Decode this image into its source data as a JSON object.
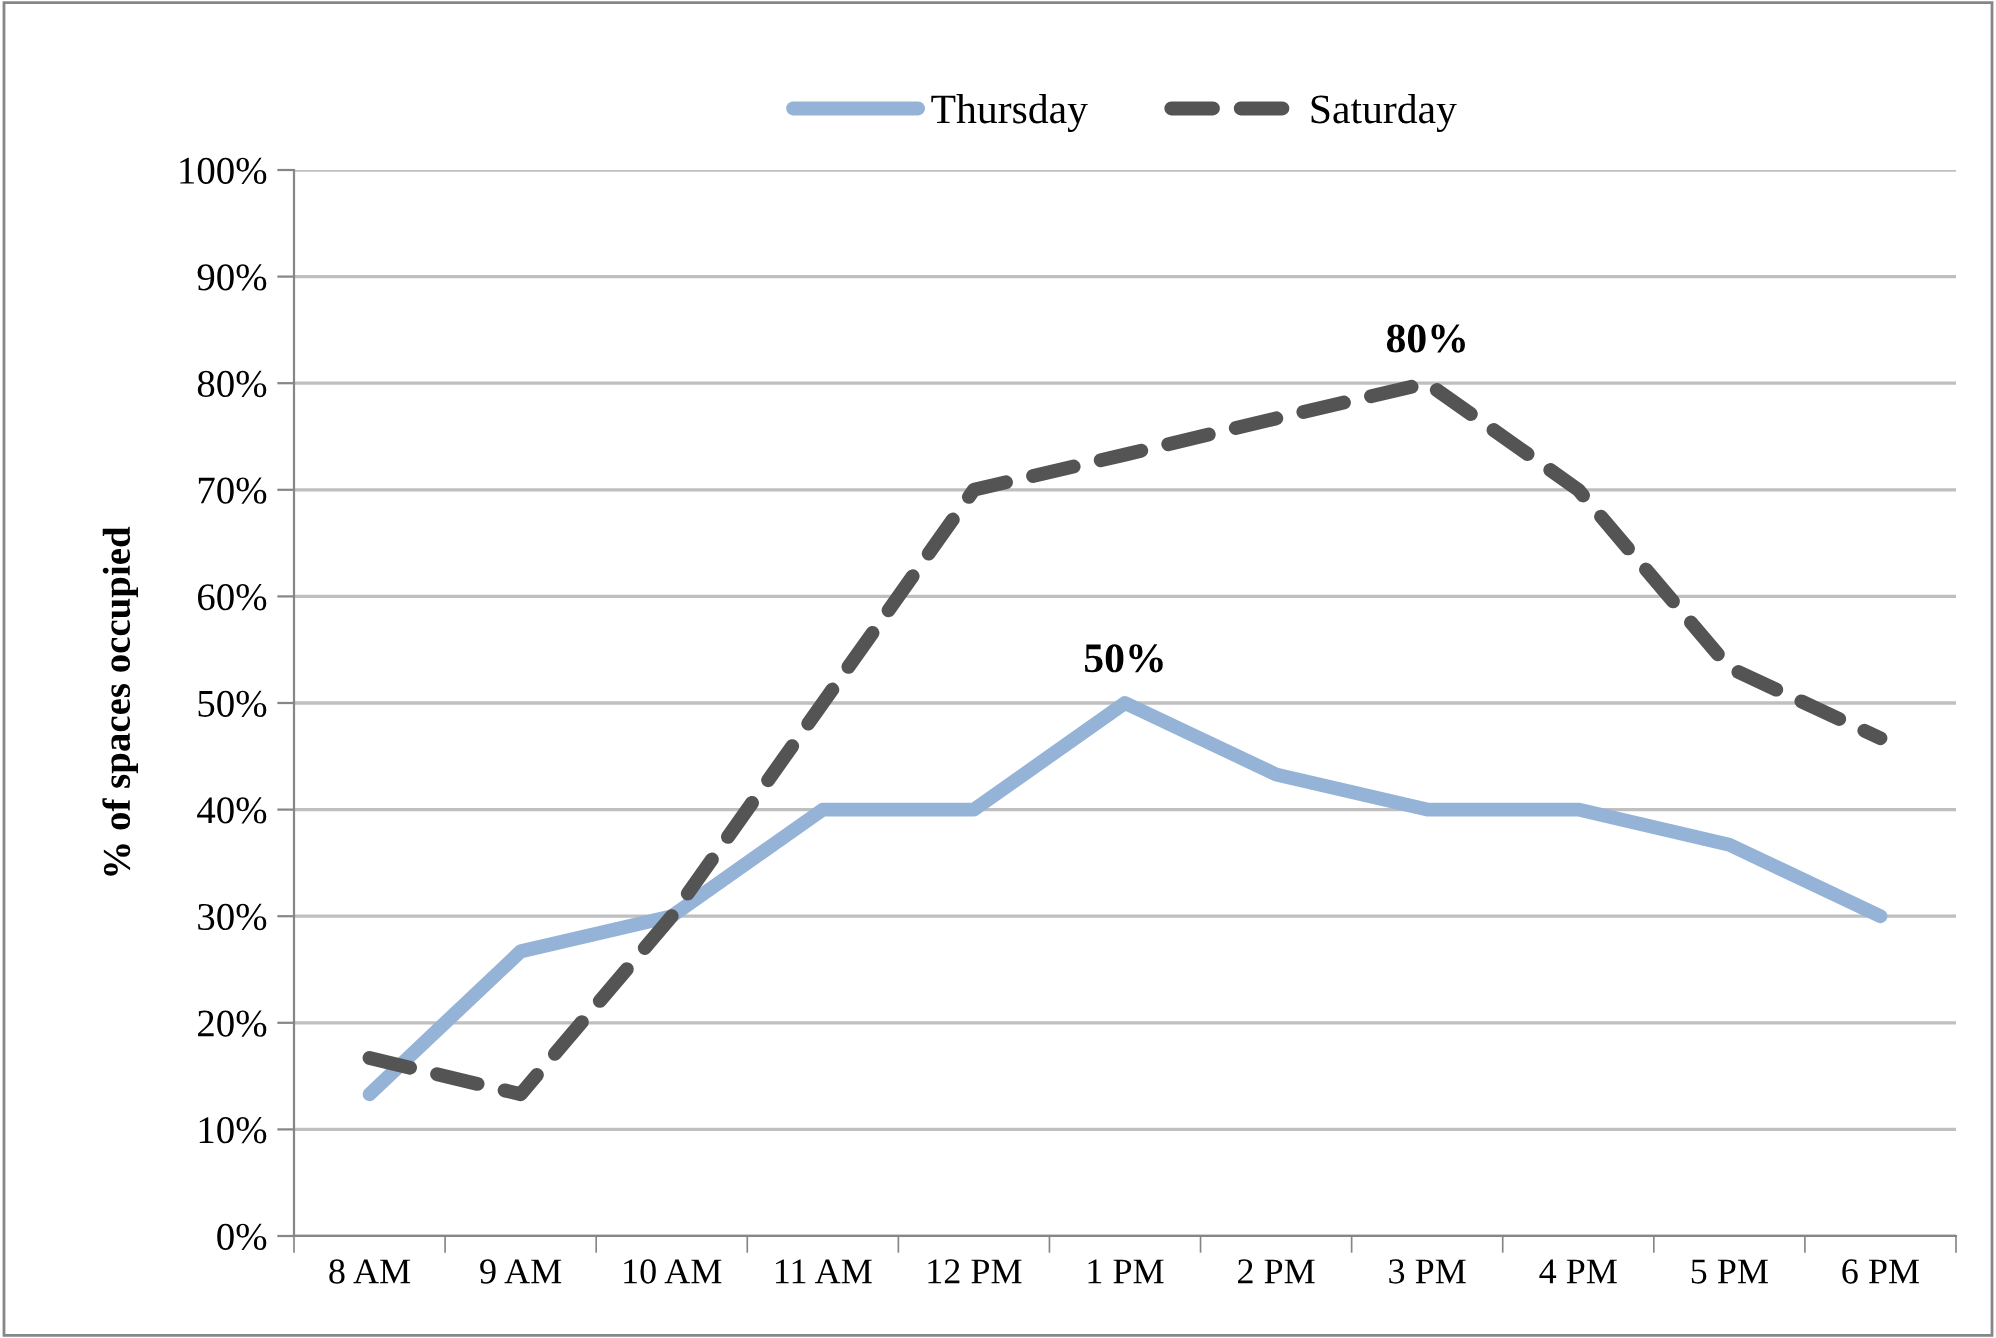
{
  "chart_data": {
    "type": "line",
    "ylabel": "% of spaces occupied",
    "categories": [
      "8 AM",
      "9 AM",
      "10 AM",
      "11 AM",
      "12 PM",
      "1 PM",
      "2 PM",
      "3 PM",
      "4 PM",
      "5 PM",
      "6 PM"
    ],
    "series": [
      {
        "name": "Thursday",
        "color": "#95b3d7",
        "line_style": "solid",
        "values": [
          13.3,
          26.7,
          30,
          40,
          40,
          50,
          43.3,
          40,
          40,
          36.7,
          30
        ],
        "value_labels": [
          null,
          null,
          null,
          null,
          null,
          "50%",
          null,
          null,
          null,
          null,
          null
        ]
      },
      {
        "name": "Saturday",
        "color": "#545454",
        "line_style": "dashed",
        "values": [
          16.7,
          13.3,
          30,
          50,
          70,
          73.3,
          76.7,
          80,
          70,
          53.3,
          46.7
        ],
        "value_labels": [
          null,
          null,
          null,
          null,
          null,
          null,
          null,
          "80%",
          null,
          null,
          null
        ]
      }
    ],
    "ylim": [
      0,
      100
    ],
    "yticks": [
      {
        "value": 0,
        "label": "0%"
      },
      {
        "value": 10,
        "label": "10%"
      },
      {
        "value": 20,
        "label": "20%"
      },
      {
        "value": 30,
        "label": "30%"
      },
      {
        "value": 40,
        "label": "40%"
      },
      {
        "value": 50,
        "label": "50%"
      },
      {
        "value": 60,
        "label": "60%"
      },
      {
        "value": 70,
        "label": "70%"
      },
      {
        "value": 80,
        "label": "80%"
      },
      {
        "value": 90,
        "label": "90%"
      },
      {
        "value": 100,
        "label": "100%"
      }
    ],
    "grid": "y",
    "legend": "top",
    "marker": "none"
  }
}
